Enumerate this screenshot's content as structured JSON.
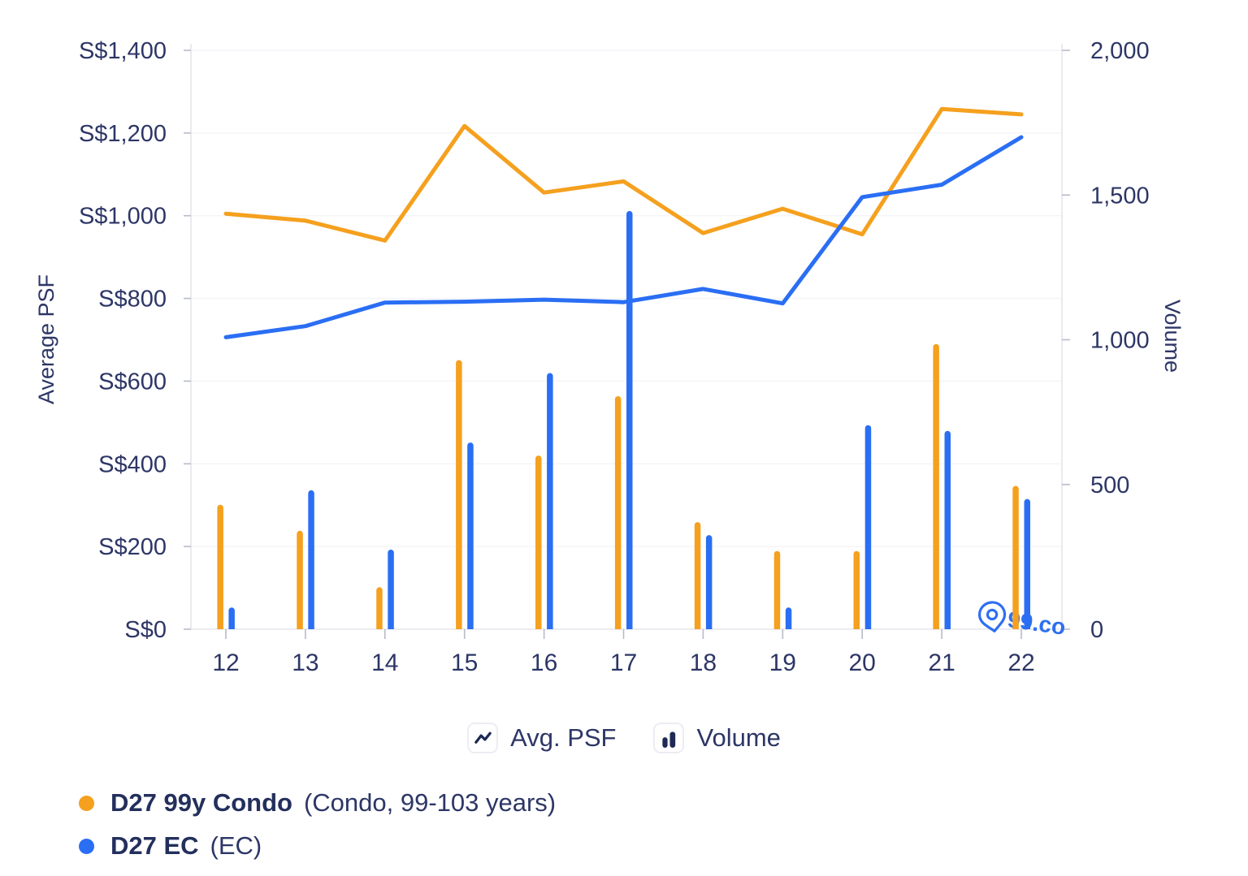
{
  "chart_data": {
    "type": "combo-line-bar",
    "x_categories": [
      "12",
      "13",
      "14",
      "15",
      "16",
      "17",
      "18",
      "19",
      "20",
      "21",
      "22"
    ],
    "left_axis": {
      "title": "Average PSF",
      "min": 0,
      "max": 1400,
      "tick_values": [
        0,
        200,
        400,
        600,
        800,
        1000,
        1200,
        1400
      ],
      "ticks": [
        "S$0",
        "S$200",
        "S$400",
        "S$600",
        "S$800",
        "S$1,000",
        "S$1,200",
        "S$1,400"
      ]
    },
    "right_axis": {
      "title": "Volume",
      "min": 0,
      "max": 2000,
      "tick_values": [
        0,
        500,
        1000,
        1500,
        2000
      ],
      "ticks": [
        "0",
        "500",
        "1,000",
        "1,500",
        "2,000"
      ]
    },
    "series": [
      {
        "name": "D27 99y Condo",
        "qualifier": "(Condo, 99-103 years)",
        "color": "#F5A01E",
        "avg_psf": [
          1005,
          988,
          940,
          1217,
          1056,
          1083,
          958,
          1017,
          955,
          1258,
          1245
        ],
        "volume": [
          430,
          340,
          145,
          930,
          600,
          805,
          370,
          270,
          270,
          985,
          495
        ]
      },
      {
        "name": "D27 EC",
        "qualifier": "(EC)",
        "color": "#2A6EF4",
        "avg_psf": [
          706,
          733,
          790,
          792,
          797,
          791,
          823,
          788,
          1045,
          1075,
          1190
        ],
        "volume": [
          75,
          480,
          275,
          645,
          885,
          1445,
          325,
          75,
          705,
          685,
          450
        ]
      }
    ],
    "legend": {
      "avg_psf_label": "Avg. PSF",
      "volume_label": "Volume"
    },
    "watermark": {
      "text": "99.co"
    },
    "layout_hints": {
      "grid": "horizontal-light",
      "legend_position": "bottom-center"
    }
  },
  "colors": {
    "navy_text": "#2D3666",
    "legend_icon_navy": "#1E2A55",
    "orange": "#F5A01E",
    "blue": "#2A6EF4",
    "watermark_blue": "#2E6FF2",
    "grid": "#F4F4F9",
    "axis": "#E5E6EC",
    "tick": "#B7BBCA"
  }
}
